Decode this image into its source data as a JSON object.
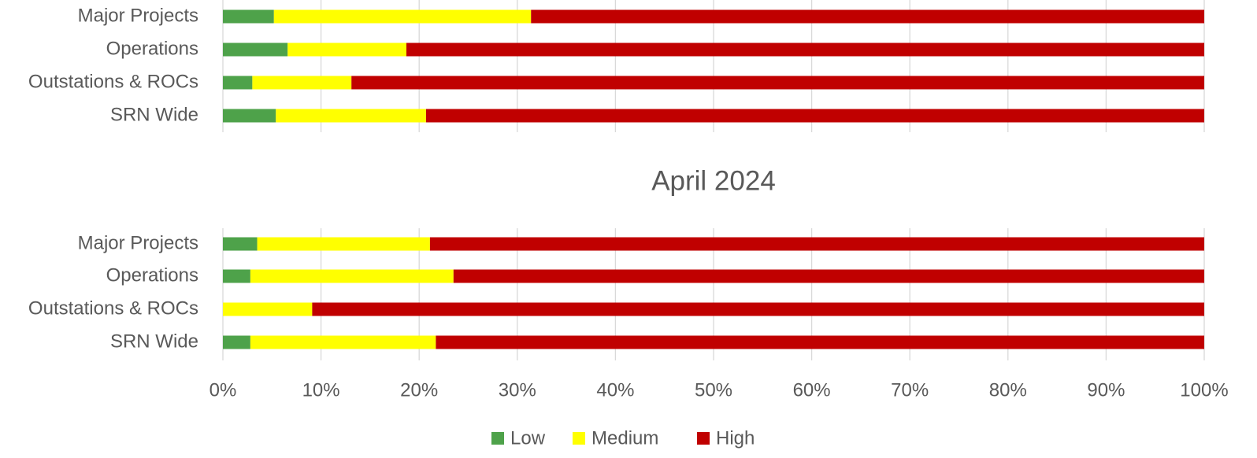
{
  "chart_data": {
    "type": "bar",
    "orientation": "horizontal",
    "stacked": true,
    "grid": true,
    "categories": [
      "Major Projects",
      "Operations",
      "Outstations & ROCs",
      "SRN Wide"
    ],
    "series": [
      {
        "name": "Low",
        "color": "#4ea24a"
      },
      {
        "name": "Medium",
        "color": "#ffff00"
      },
      {
        "name": "High",
        "color": "#c00000"
      }
    ],
    "xlim": [
      0,
      100
    ],
    "xticks": [
      {
        "value": 0,
        "label": "0%"
      },
      {
        "value": 10,
        "label": "10%"
      },
      {
        "value": 20,
        "label": "20%"
      },
      {
        "value": 30,
        "label": "30%"
      },
      {
        "value": 40,
        "label": "40%"
      },
      {
        "value": 50,
        "label": "50%"
      },
      {
        "value": 60,
        "label": "60%"
      },
      {
        "value": 70,
        "label": "70%"
      },
      {
        "value": 80,
        "label": "80%"
      },
      {
        "value": 90,
        "label": "90%"
      },
      {
        "value": 100,
        "label": "100%"
      }
    ],
    "legend": "bottom",
    "panels": [
      {
        "values": [
          [
            5.2,
            6.6,
            3.0,
            5.4
          ],
          [
            26.2,
            12.1,
            10.1,
            15.3
          ],
          [
            68.6,
            81.3,
            86.9,
            79.3
          ]
        ]
      },
      {
        "title": "April 2024",
        "values": [
          [
            3.5,
            2.8,
            0,
            2.8
          ],
          [
            17.6,
            20.7,
            9.1,
            18.9
          ],
          [
            78.9,
            76.5,
            90.9,
            78.3
          ]
        ]
      }
    ]
  }
}
